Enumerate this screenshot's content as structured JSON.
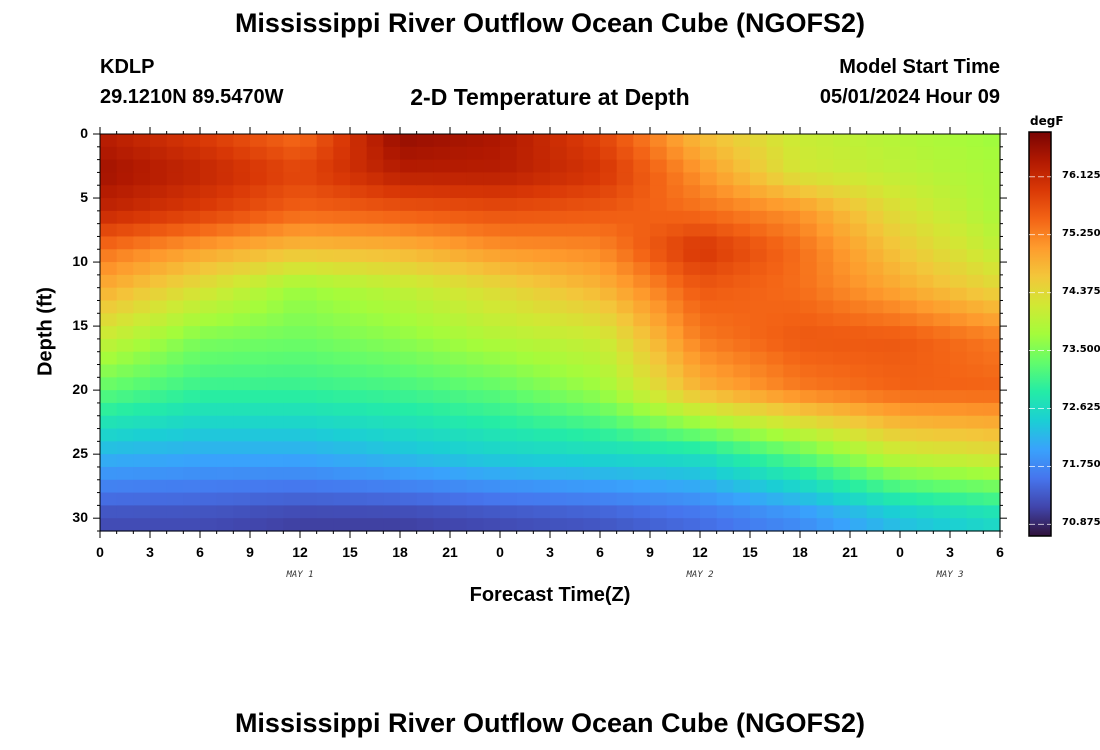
{
  "page": {
    "title_top": "Mississippi River Outflow Ocean Cube (NGOFS2)",
    "title_bottom": "Mississippi River Outflow Ocean Cube (NGOFS2)",
    "station_id": "KDLP",
    "station_coords": "29.1210N  89.5470W",
    "plot_title": "2-D Temperature at Depth",
    "model_start_label": "Model Start Time",
    "model_start_value": "05/01/2024 Hour 09"
  },
  "chart_data": {
    "type": "heatmap",
    "title": "2-D Temperature at Depth",
    "xlabel": "Forecast Time(Z)",
    "ylabel": "Depth (ft)",
    "x_range_hours": [
      0,
      54
    ],
    "y_range_ft": [
      0,
      31
    ],
    "x_tick_labels": [
      "0",
      "3",
      "6",
      "9",
      "12",
      "15",
      "18",
      "21",
      "0",
      "3",
      "6",
      "9",
      "12",
      "15",
      "18",
      "21",
      "0",
      "3",
      "6"
    ],
    "day_labels": [
      {
        "text": "MAY 1",
        "at_tick": 4
      },
      {
        "text": "MAY 2",
        "at_tick": 12
      },
      {
        "text": "MAY 3",
        "at_tick": 17
      }
    ],
    "y_ticks": [
      0,
      5,
      10,
      15,
      20,
      25,
      30
    ],
    "colorbar": {
      "unit": "degF",
      "range": [
        70.7,
        76.8
      ],
      "tick_values": [
        "76.125",
        "75.250",
        "74.375",
        "73.500",
        "72.625",
        "71.750",
        "70.875"
      ],
      "colormap": [
        "#30123b",
        "#4145ab",
        "#4675ed",
        "#39a2fc",
        "#1bcfd4",
        "#24eca6",
        "#61fc6c",
        "#a4fc3b",
        "#d1e834",
        "#f3c63a",
        "#fe9b2d",
        "#f36315",
        "#d93806",
        "#b11901",
        "#7a0403"
      ]
    },
    "depth_profile_ft": [
      0,
      3,
      6,
      9,
      12,
      16,
      20,
      25,
      30
    ],
    "columns": [
      {
        "hour": 0,
        "temps": [
          76.3,
          76.5,
          76.2,
          75.4,
          74.9,
          74.1,
          73.3,
          72.2,
          71.2
        ]
      },
      {
        "hour": 6,
        "temps": [
          75.9,
          76.2,
          75.9,
          75.0,
          74.3,
          73.5,
          73.0,
          72.1,
          71.2
        ]
      },
      {
        "hour": 12,
        "temps": [
          75.4,
          75.8,
          75.5,
          74.7,
          73.7,
          73.4,
          73.0,
          72.1,
          71.1
        ]
      },
      {
        "hour": 18,
        "temps": [
          76.6,
          76.3,
          75.6,
          74.8,
          74.0,
          73.6,
          73.1,
          72.3,
          71.1
        ]
      },
      {
        "hour": 24,
        "temps": [
          76.4,
          76.3,
          75.7,
          75.1,
          74.4,
          73.9,
          73.3,
          72.5,
          71.2
        ]
      },
      {
        "hour": 30,
        "temps": [
          75.8,
          76.0,
          75.6,
          75.2,
          74.8,
          74.1,
          73.7,
          72.6,
          71.3
        ]
      },
      {
        "hour": 36,
        "temps": [
          74.7,
          75.1,
          75.4,
          76.0,
          75.6,
          75.3,
          74.8,
          72.7,
          71.5
        ]
      },
      {
        "hour": 42,
        "temps": [
          74.1,
          74.2,
          75.1,
          75.4,
          75.4,
          75.6,
          75.3,
          73.3,
          71.8
        ]
      },
      {
        "hour": 48,
        "temps": [
          73.9,
          74.0,
          74.3,
          74.6,
          74.9,
          75.6,
          75.5,
          74.1,
          72.3
        ]
      },
      {
        "hour": 54,
        "temps": [
          73.7,
          73.8,
          73.8,
          74.0,
          74.4,
          75.3,
          75.5,
          74.3,
          72.6
        ]
      }
    ]
  }
}
